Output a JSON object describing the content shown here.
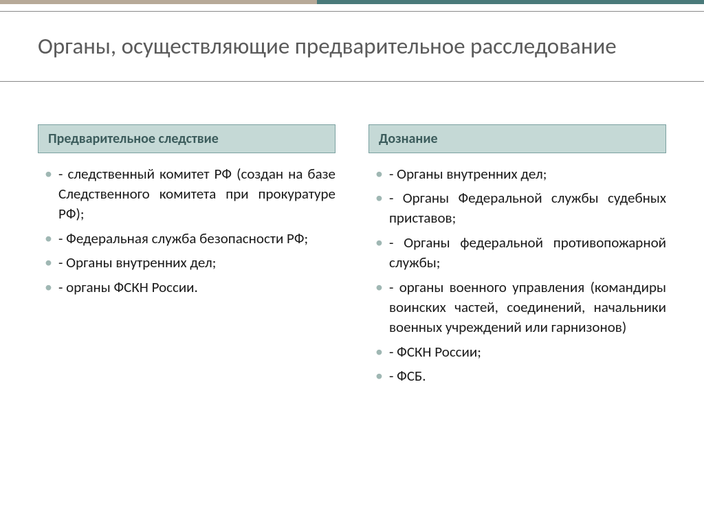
{
  "title": "Органы, осуществляющие предварительное расследование",
  "left": {
    "header": "Предварительное следствие",
    "items": [
      "- следственный комитет РФ (создан на базе Следственного комитета при прокуратуре РФ);",
      "- Федеральная служба безопасности РФ;",
      "- Органы внутренних дел;",
      "- органы ФСКН России."
    ]
  },
  "right": {
    "header": "Дознание",
    "items": [
      "- Органы внутренних дел;",
      "- Органы Федеральной службы судебных приставов;",
      "- Органы федеральной противопожарной службы;",
      "- органы военного управления (командиры воинских частей, соединений, начальники военных учреждений или гарнизонов)",
      "- ФСКН России;",
      "- ФСБ."
    ]
  },
  "styling": {
    "top_border_colors": [
      "#b7a998",
      "#4a7a7a"
    ],
    "header_bg": "#c5d9d6",
    "header_border": "#7aa0a0",
    "header_text_color": "#3c5c5c",
    "title_color": "#5b5b5b",
    "bullet_color": "#9fb7b3",
    "body_text_color": "#1a1a1a",
    "title_fontsize": 33,
    "header_fontsize": 20,
    "body_fontsize": 21,
    "background": "#ffffff"
  }
}
